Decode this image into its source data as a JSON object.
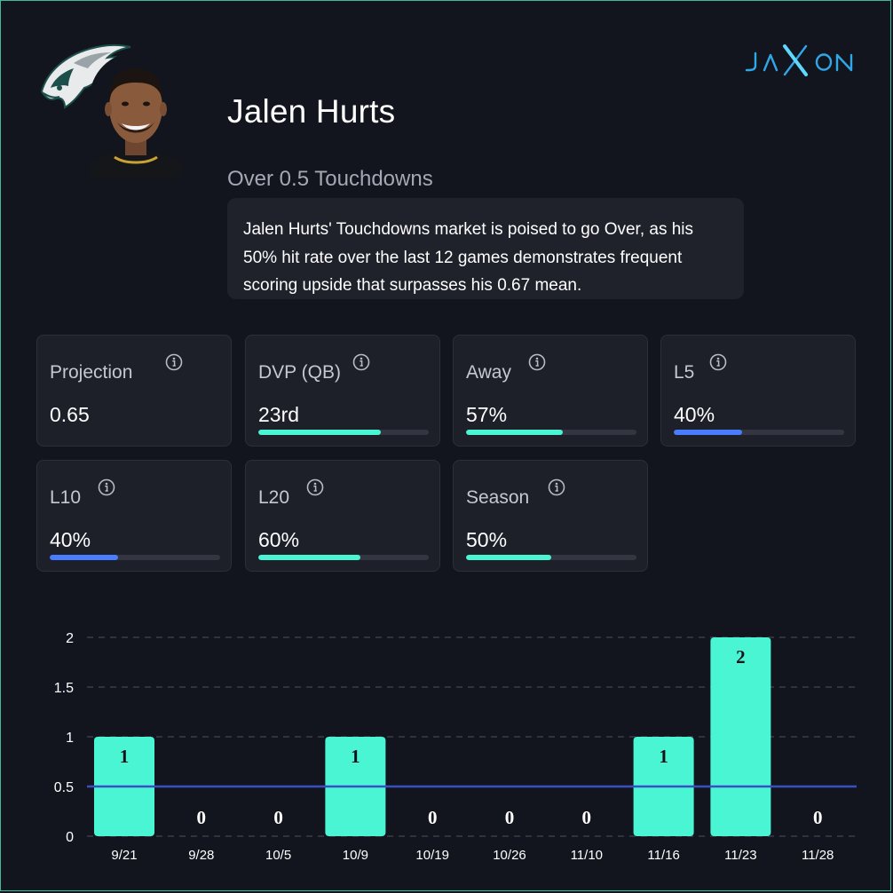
{
  "header": {
    "player_name": "Jalen Hurts",
    "market": "Over 0.5 Touchdowns",
    "summary": "Jalen Hurts' Touchdowns market is poised to go Over, as his 50% hit rate over the last 12 games demonstrates frequent scoring upside that surpasses his 0.67 mean.",
    "brand": "JAXON",
    "team_logo_icon": "eagle-logo-icon",
    "avatar_icon": "player-headshot-icon"
  },
  "colors": {
    "background": "#13151e",
    "accent_teal": "#4af5d4",
    "accent_blue": "#4a7cff",
    "brand_blue": "#2fa7e8",
    "line_blue": "#3a4fc4"
  },
  "stats": [
    {
      "label": "Projection",
      "value": "0.65",
      "progress": null,
      "color": null
    },
    {
      "label": "DVP (QB)",
      "value": "23rd",
      "progress": 0.72,
      "color": "#4af5d4"
    },
    {
      "label": "Away",
      "value": "57%",
      "progress": 0.57,
      "color": "#4af5d4"
    },
    {
      "label": "L5",
      "value": "40%",
      "progress": 0.4,
      "color": "#4a7cff"
    },
    {
      "label": "L10",
      "value": "40%",
      "progress": 0.4,
      "color": "#4a7cff"
    },
    {
      "label": "L20",
      "value": "60%",
      "progress": 0.6,
      "color": "#4af5d4"
    },
    {
      "label": "Season",
      "value": "50%",
      "progress": 0.5,
      "color": "#4af5d4"
    }
  ],
  "chart_data": {
    "type": "bar",
    "categories": [
      "9/21",
      "9/28",
      "10/5",
      "10/9",
      "10/19",
      "10/26",
      "11/10",
      "11/16",
      "11/23",
      "11/28"
    ],
    "values": [
      1,
      0,
      0,
      1,
      0,
      0,
      0,
      1,
      2,
      0
    ],
    "data_labels": [
      "1",
      "0",
      "0",
      "1",
      "0",
      "0",
      "0",
      "1",
      "2",
      "0"
    ],
    "yticks": [
      "0",
      "0.5",
      "1",
      "1.5",
      "2"
    ],
    "ylim": [
      0,
      2
    ],
    "line_value": 0.5,
    "grid": true,
    "title": "",
    "xlabel": "",
    "ylabel": ""
  }
}
